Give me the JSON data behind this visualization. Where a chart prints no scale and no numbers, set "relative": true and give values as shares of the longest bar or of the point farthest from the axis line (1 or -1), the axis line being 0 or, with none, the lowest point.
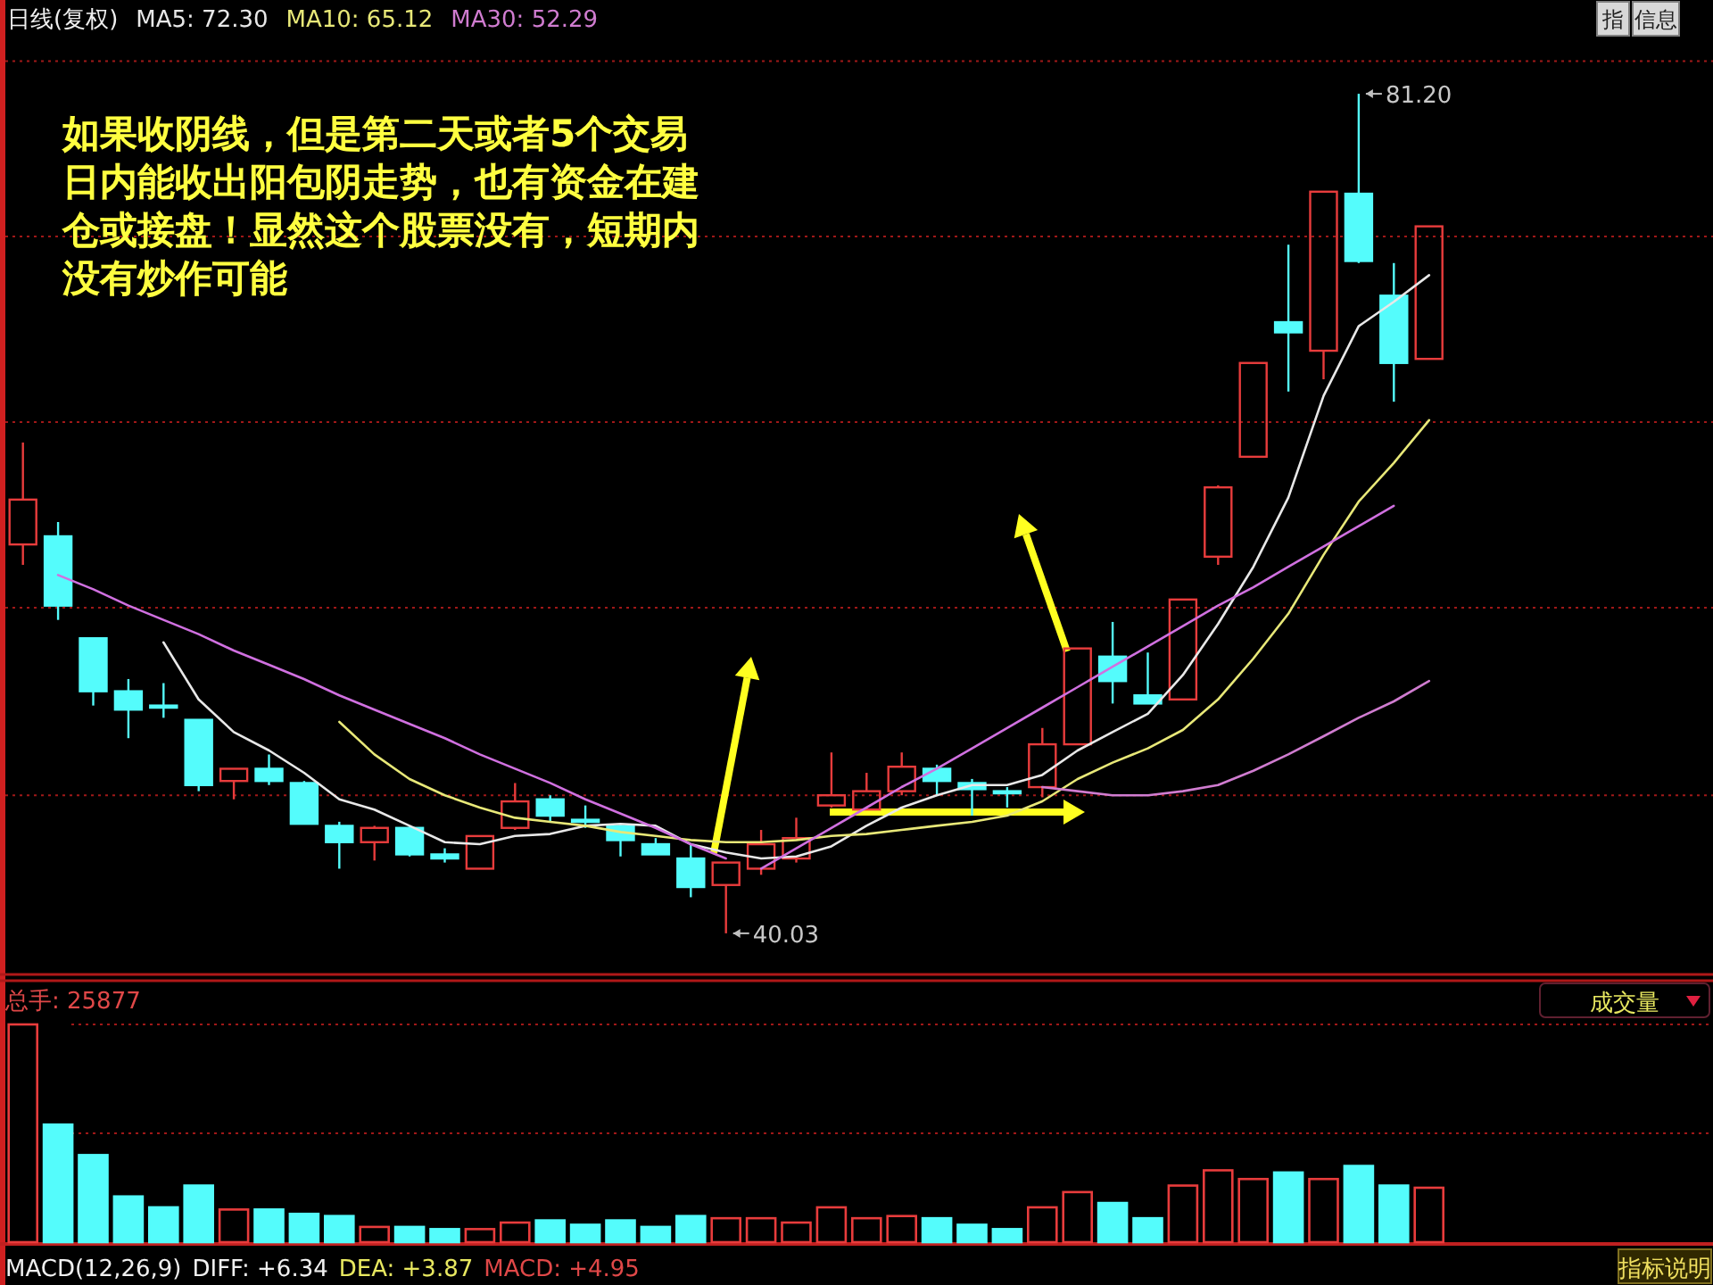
{
  "chart_data": [
    {
      "type": "candlestick",
      "title": "日线(复权)",
      "legend": "top left",
      "grid": "y",
      "categories": [
        null,
        null,
        null,
        null,
        null,
        null,
        null,
        null,
        null,
        null,
        null,
        null,
        null,
        null,
        null,
        null,
        null,
        null,
        null,
        null,
        null,
        null,
        null,
        null,
        null,
        null,
        null,
        null,
        null,
        null,
        null,
        null,
        null,
        null,
        null,
        null,
        null,
        null,
        null,
        null,
        null
      ],
      "ylim": [
        38.1,
        85.8
      ],
      "yticks": [
        {
          "value": 46.8,
          "label": null
        },
        {
          "value": 56.0,
          "label": null
        },
        {
          "value": 65.1,
          "label": null
        },
        {
          "value": 74.2,
          "label": null
        },
        {
          "value": 82.8,
          "label": null
        }
      ],
      "ohlc": [
        [
          59.1,
          64.1,
          58.1,
          61.3
        ],
        [
          59.5,
          60.2,
          55.4,
          56.1
        ],
        [
          54.5,
          54.5,
          51.2,
          51.9
        ],
        [
          51.9,
          52.5,
          49.6,
          51.0
        ],
        [
          51.2,
          52.3,
          50.6,
          51.1
        ],
        [
          50.5,
          50.5,
          47.0,
          47.3
        ],
        [
          47.5,
          48.1,
          46.6,
          48.1
        ],
        [
          48.1,
          48.8,
          47.3,
          47.5
        ],
        [
          47.4,
          47.5,
          45.4,
          45.4
        ],
        [
          45.3,
          45.5,
          43.2,
          44.5
        ],
        [
          44.5,
          45.3,
          43.6,
          45.2
        ],
        [
          45.2,
          45.3,
          43.8,
          43.9
        ],
        [
          43.9,
          44.2,
          43.5,
          43.7
        ],
        [
          43.2,
          44.8,
          43.2,
          44.8
        ],
        [
          45.2,
          47.4,
          45.1,
          46.5
        ],
        [
          46.6,
          46.8,
          45.5,
          45.8
        ],
        [
          45.6,
          46.3,
          45.2,
          45.5
        ],
        [
          45.3,
          45.4,
          43.8,
          44.6
        ],
        [
          44.4,
          44.7,
          43.9,
          43.9
        ],
        [
          43.7,
          44.4,
          41.8,
          42.3
        ],
        [
          42.4,
          43.5,
          40.03,
          43.5
        ],
        [
          43.2,
          45.1,
          42.9,
          44.4
        ],
        [
          43.7,
          45.7,
          43.5,
          44.7
        ],
        [
          46.3,
          48.9,
          46.2,
          46.8
        ],
        [
          46.1,
          47.9,
          46.1,
          47.0
        ],
        [
          47.0,
          48.9,
          46.8,
          48.2
        ],
        [
          48.1,
          48.3,
          46.8,
          47.5
        ],
        [
          47.4,
          47.6,
          45.8,
          47.1
        ],
        [
          47.0,
          47.2,
          46.2,
          46.9
        ],
        [
          47.2,
          50.1,
          46.7,
          49.3
        ],
        [
          49.3,
          54.0,
          49.3,
          54.0
        ],
        [
          53.6,
          55.3,
          51.3,
          52.4
        ],
        [
          51.7,
          53.8,
          51.3,
          51.3
        ],
        [
          51.5,
          56.4,
          51.5,
          56.4
        ],
        [
          58.5,
          62.0,
          58.1,
          61.9
        ],
        [
          63.4,
          68.0,
          63.4,
          68.0
        ],
        [
          70.0,
          73.8,
          66.6,
          69.5
        ],
        [
          68.6,
          76.4,
          67.2,
          76.4
        ],
        [
          76.3,
          81.2,
          72.9,
          73.0
        ],
        [
          71.3,
          72.9,
          66.1,
          68.0
        ],
        [
          68.2,
          74.7,
          68.2,
          74.7
        ]
      ],
      "colors": [
        "#e83c3c",
        "#54fcfc",
        "#54fcfc",
        "#54fcfc",
        "#54fcfc",
        "#54fcfc",
        "#e83c3c",
        "#54fcfc",
        "#54fcfc",
        "#54fcfc",
        "#e83c3c",
        "#54fcfc",
        "#54fcfc",
        "#e83c3c",
        "#e83c3c",
        "#54fcfc",
        "#54fcfc",
        "#54fcfc",
        "#54fcfc",
        "#54fcfc",
        "#e83c3c",
        "#e83c3c",
        "#e83c3c",
        "#e83c3c",
        "#e83c3c",
        "#e83c3c",
        "#54fcfc",
        "#54fcfc",
        "#54fcfc",
        "#e83c3c",
        "#e83c3c",
        "#54fcfc",
        "#54fcfc",
        "#e83c3c",
        "#e83c3c",
        "#e83c3c",
        "#54fcfc",
        "#e83c3c",
        "#54fcfc",
        "#54fcfc",
        "#e83c3c"
      ],
      "series": [
        {
          "name": "MA5: 72.30",
          "type": "line",
          "color": "#e8e8e8",
          "values": [
            null,
            null,
            null,
            null,
            54.3,
            51.5,
            49.9,
            49.0,
            47.9,
            46.6,
            46.1,
            45.3,
            44.5,
            44.4,
            44.8,
            44.9,
            45.3,
            45.4,
            45.3,
            44.4,
            44.0,
            43.7,
            43.8,
            44.3,
            45.3,
            46.2,
            46.8,
            47.3,
            47.3,
            47.8,
            49.0,
            49.9,
            50.8,
            52.7,
            55.2,
            58.0,
            61.4,
            66.4,
            69.8,
            71.0,
            72.3
          ]
        },
        {
          "name": "MA10: 65.12",
          "type": "line",
          "color": "#e8e878",
          "values": [
            null,
            null,
            null,
            null,
            null,
            null,
            null,
            null,
            null,
            50.4,
            48.8,
            47.6,
            46.8,
            46.2,
            45.7,
            45.5,
            45.3,
            45.0,
            44.8,
            44.6,
            44.5,
            44.5,
            44.6,
            44.8,
            44.9,
            45.1,
            45.3,
            45.5,
            45.8,
            46.5,
            47.6,
            48.4,
            49.1,
            50.0,
            51.5,
            53.5,
            55.7,
            58.6,
            61.2,
            63.1,
            65.2
          ]
        },
        {
          "name": "MA30: 52.29",
          "type": "line",
          "color": "#d07cd0",
          "values": [
            null,
            null,
            null,
            null,
            null,
            null,
            null,
            null,
            null,
            null,
            null,
            null,
            null,
            null,
            null,
            null,
            null,
            null,
            null,
            null,
            null,
            null,
            null,
            null,
            null,
            null,
            null,
            null,
            null,
            47.2,
            47.0,
            46.8,
            46.8,
            47.0,
            47.3,
            48.0,
            48.8,
            49.7,
            50.6,
            51.4,
            52.4
          ]
        },
        {
          "type": "line",
          "color": "#d070e0",
          "values": [
            null,
            57.6,
            56.9,
            56.1,
            55.4,
            54.7,
            53.9,
            53.2,
            52.5,
            51.7,
            51.0,
            50.3,
            49.6,
            48.8,
            48.1,
            47.4,
            46.6,
            45.9,
            45.2,
            44.4,
            43.7,
            null,
            null,
            null,
            null,
            null,
            null,
            null,
            null,
            null,
            null,
            null,
            null,
            null,
            null,
            null,
            null,
            null,
            null,
            null,
            null
          ]
        },
        {
          "type": "line",
          "color": "#d070e0",
          "values": [
            null,
            null,
            null,
            null,
            null,
            null,
            null,
            null,
            null,
            null,
            null,
            null,
            null,
            null,
            null,
            null,
            null,
            null,
            null,
            null,
            null,
            43.2,
            44.2,
            45.2,
            46.2,
            47.2,
            48.1,
            49.1,
            50.1,
            51.1,
            52.1,
            53.1,
            54.1,
            55.1,
            56.1,
            57.0,
            58.0,
            59.0,
            60.0,
            61.0,
            null
          ]
        }
      ],
      "annotations": [
        "如果收阴线，但是第二天或者5个交易日内能收出阳包阴走势，也有资金在建仓或接盘！显然这个股票没有，短期内没有炒作可能",
        "指",
        "信息",
        "81.20",
        "40.03"
      ]
    },
    {
      "type": "bar",
      "title": "总手: 25877",
      "relative": true,
      "categories": [
        null,
        null,
        null,
        null,
        null,
        null,
        null,
        null,
        null,
        null,
        null,
        null,
        null,
        null,
        null,
        null,
        null,
        null,
        null,
        null,
        null,
        null,
        null,
        null,
        null,
        null,
        null,
        null,
        null,
        null,
        null,
        null,
        null,
        null,
        null,
        null,
        null,
        null,
        null,
        null,
        null
      ],
      "values": [
        1,
        0.54,
        0.4,
        0.21,
        0.16,
        0.26,
        0.15,
        0.15,
        0.13,
        0.12,
        0.07,
        0.07,
        0.06,
        0.06,
        0.09,
        0.1,
        0.08,
        0.1,
        0.07,
        0.12,
        0.11,
        0.11,
        0.09,
        0.16,
        0.11,
        0.12,
        0.11,
        0.08,
        0.06,
        0.16,
        0.23,
        0.18,
        0.11,
        0.26,
        0.33,
        0.29,
        0.32,
        0.29,
        0.35,
        0.26,
        0.25
      ],
      "colors": [
        "#e83c3c",
        "#54fcfc",
        "#54fcfc",
        "#54fcfc",
        "#54fcfc",
        "#54fcfc",
        "#e83c3c",
        "#54fcfc",
        "#54fcfc",
        "#54fcfc",
        "#e83c3c",
        "#54fcfc",
        "#54fcfc",
        "#e83c3c",
        "#e83c3c",
        "#54fcfc",
        "#54fcfc",
        "#54fcfc",
        "#54fcfc",
        "#54fcfc",
        "#e83c3c",
        "#e83c3c",
        "#e83c3c",
        "#e83c3c",
        "#e83c3c",
        "#e83c3c",
        "#54fcfc",
        "#54fcfc",
        "#54fcfc",
        "#e83c3c",
        "#e83c3c",
        "#54fcfc",
        "#54fcfc",
        "#e83c3c",
        "#e83c3c",
        "#e83c3c",
        "#54fcfc",
        "#e83c3c",
        "#54fcfc",
        "#54fcfc",
        "#e83c3c"
      ],
      "ref_lines": [
        {
          "axis": "y",
          "value": 1,
          "color": "#a01818",
          "line_style": "dotted"
        },
        {
          "axis": "y",
          "value": 0.5,
          "color": "#a01818",
          "line_style": "dotted"
        }
      ],
      "annotations": [
        "成交量",
        "MACD(12,26,9)",
        "DIFF: +6.34",
        "DEA: +3.87",
        "MACD: +4.95",
        "指标说明"
      ]
    }
  ]
}
